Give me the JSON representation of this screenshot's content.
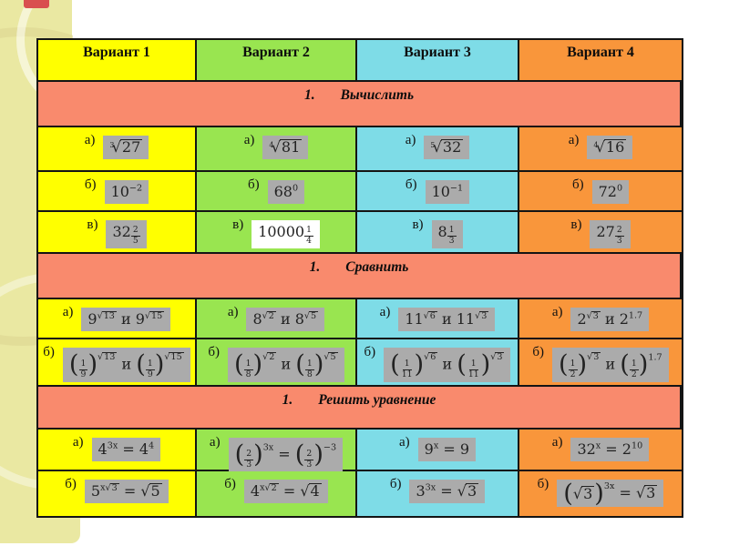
{
  "colors": {
    "col1": "#FFFF00",
    "col2": "#99E550",
    "col3": "#7EDCE7",
    "col4": "#F9963B",
    "section": "#F98A6D",
    "formulaBg": "#ABABAB",
    "formulaWhite": "#FFFFFF",
    "border": "#141414",
    "stripe": "#EAE8A2",
    "ribbon": "#D94F4F"
  },
  "table": {
    "headers": [
      {
        "label": "Вариант 1"
      },
      {
        "label": "Вариант 2"
      },
      {
        "label": "Вариант 3"
      },
      {
        "label": "Вариант 4"
      }
    ],
    "sections": [
      {
        "num": "1.",
        "title": "Вычислить",
        "rows": [
          {
            "label": "а)",
            "cells": [
              {
                "f": [
                  {
                    "t": "nroot",
                    "n": "3",
                    "c": [
                      "27"
                    ]
                  }
                ]
              },
              {
                "f": [
                  {
                    "t": "nroot",
                    "n": "4",
                    "c": [
                      "81"
                    ]
                  }
                ]
              },
              {
                "f": [
                  {
                    "t": "nroot",
                    "n": "5",
                    "c": [
                      "32"
                    ]
                  }
                ]
              },
              {
                "f": [
                  {
                    "t": "nroot",
                    "n": "4",
                    "c": [
                      "16"
                    ]
                  }
                ]
              }
            ]
          },
          {
            "label": "б)",
            "cells": [
              {
                "f": [
                  "10",
                  {
                    "t": "sup",
                    "c": [
                      "−2"
                    ]
                  }
                ]
              },
              {
                "f": [
                  "68",
                  {
                    "t": "sup",
                    "c": [
                      "0"
                    ]
                  }
                ]
              },
              {
                "f": [
                  "10",
                  {
                    "t": "sup",
                    "c": [
                      "−1"
                    ]
                  }
                ]
              },
              {
                "f": [
                  "72",
                  {
                    "t": "sup",
                    "c": [
                      "0"
                    ]
                  }
                ]
              }
            ]
          },
          {
            "label": "в)",
            "cells": [
              {
                "f": [
                  "32",
                  {
                    "t": "sup",
                    "c": [
                      {
                        "t": "frac",
                        "num": [
                          "2"
                        ],
                        "den": [
                          "5"
                        ]
                      }
                    ]
                  }
                ]
              },
              {
                "f": [
                  "10000",
                  {
                    "t": "sup",
                    "c": [
                      {
                        "t": "frac",
                        "num": [
                          "1"
                        ],
                        "den": [
                          "4"
                        ]
                      }
                    ]
                  }
                ],
                "white": true
              },
              {
                "f": [
                  "8",
                  {
                    "t": "sup",
                    "c": [
                      {
                        "t": "frac",
                        "num": [
                          "1"
                        ],
                        "den": [
                          "3"
                        ]
                      }
                    ]
                  }
                ]
              },
              {
                "f": [
                  "27",
                  {
                    "t": "sup",
                    "c": [
                      {
                        "t": "frac",
                        "num": [
                          "2"
                        ],
                        "den": [
                          "3"
                        ]
                      }
                    ]
                  }
                ]
              }
            ]
          }
        ]
      },
      {
        "num": "1.",
        "title": "Сравнить",
        "rows": [
          {
            "label": "а)",
            "cells": [
              {
                "f": [
                  "9",
                  {
                    "t": "sup",
                    "c": [
                      {
                        "t": "sqrt",
                        "c": [
                          "13"
                        ]
                      }
                    ]
                  },
                  " и 9",
                  {
                    "t": "sup",
                    "c": [
                      {
                        "t": "sqrt",
                        "c": [
                          "15"
                        ]
                      }
                    ]
                  }
                ]
              },
              {
                "f": [
                  "8",
                  {
                    "t": "sup",
                    "c": [
                      {
                        "t": "sqrt",
                        "c": [
                          "2"
                        ]
                      }
                    ]
                  },
                  " и 8",
                  {
                    "t": "sup",
                    "c": [
                      {
                        "t": "sqrt",
                        "c": [
                          "5"
                        ]
                      }
                    ]
                  }
                ]
              },
              {
                "f": [
                  "11",
                  {
                    "t": "sup",
                    "c": [
                      {
                        "t": "sqrt",
                        "c": [
                          "6"
                        ]
                      }
                    ]
                  },
                  " и 11",
                  {
                    "t": "sup",
                    "c": [
                      {
                        "t": "sqrt",
                        "c": [
                          "3"
                        ]
                      }
                    ]
                  }
                ]
              },
              {
                "f": [
                  "2",
                  {
                    "t": "sup",
                    "c": [
                      {
                        "t": "sqrt",
                        "c": [
                          "3"
                        ]
                      }
                    ]
                  },
                  " и 2",
                  {
                    "t": "sup",
                    "c": [
                      "1.7"
                    ]
                  }
                ]
              }
            ]
          },
          {
            "label": "б)",
            "cells": [
              {
                "f": [
                  {
                    "t": "par",
                    "c": [
                      {
                        "t": "frac",
                        "num": [
                          "1"
                        ],
                        "den": [
                          "9"
                        ]
                      }
                    ]
                  },
                  {
                    "t": "sup",
                    "c": [
                      {
                        "t": "sqrt",
                        "c": [
                          "13"
                        ]
                      }
                    ]
                  },
                  " и ",
                  {
                    "t": "par",
                    "c": [
                      {
                        "t": "frac",
                        "num": [
                          "1"
                        ],
                        "den": [
                          "9"
                        ]
                      }
                    ]
                  },
                  {
                    "t": "sup",
                    "c": [
                      {
                        "t": "sqrt",
                        "c": [
                          "15"
                        ]
                      }
                    ]
                  }
                ]
              },
              {
                "f": [
                  {
                    "t": "par",
                    "c": [
                      {
                        "t": "frac",
                        "num": [
                          "1"
                        ],
                        "den": [
                          "8"
                        ]
                      }
                    ]
                  },
                  {
                    "t": "sup",
                    "c": [
                      {
                        "t": "sqrt",
                        "c": [
                          "2"
                        ]
                      }
                    ]
                  },
                  " и ",
                  {
                    "t": "par",
                    "c": [
                      {
                        "t": "frac",
                        "num": [
                          "1"
                        ],
                        "den": [
                          "8"
                        ]
                      }
                    ]
                  },
                  {
                    "t": "sup",
                    "c": [
                      {
                        "t": "sqrt",
                        "c": [
                          "5"
                        ]
                      }
                    ]
                  }
                ]
              },
              {
                "f": [
                  {
                    "t": "par",
                    "c": [
                      {
                        "t": "frac",
                        "num": [
                          "1"
                        ],
                        "den": [
                          "11"
                        ]
                      }
                    ]
                  },
                  {
                    "t": "sup",
                    "c": [
                      {
                        "t": "sqrt",
                        "c": [
                          "6"
                        ]
                      }
                    ]
                  },
                  " и ",
                  {
                    "t": "par",
                    "c": [
                      {
                        "t": "frac",
                        "num": [
                          "1"
                        ],
                        "den": [
                          "11"
                        ]
                      }
                    ]
                  },
                  {
                    "t": "sup",
                    "c": [
                      {
                        "t": "sqrt",
                        "c": [
                          "3"
                        ]
                      }
                    ]
                  }
                ]
              },
              {
                "f": [
                  {
                    "t": "par",
                    "c": [
                      {
                        "t": "frac",
                        "num": [
                          "1"
                        ],
                        "den": [
                          "2"
                        ]
                      }
                    ]
                  },
                  {
                    "t": "sup",
                    "c": [
                      {
                        "t": "sqrt",
                        "c": [
                          "3"
                        ]
                      }
                    ]
                  },
                  " и ",
                  {
                    "t": "par",
                    "c": [
                      {
                        "t": "frac",
                        "num": [
                          "1"
                        ],
                        "den": [
                          "2"
                        ]
                      }
                    ]
                  },
                  {
                    "t": "sup",
                    "c": [
                      "1.7"
                    ]
                  }
                ]
              }
            ]
          }
        ]
      },
      {
        "num": "1.",
        "title": "Решить уравнение",
        "rows": [
          {
            "label": "а)",
            "cells": [
              {
                "f": [
                  "4",
                  {
                    "t": "sup",
                    "c": [
                      "3x"
                    ]
                  },
                  " = 4",
                  {
                    "t": "sup",
                    "c": [
                      "4"
                    ]
                  }
                ]
              },
              {
                "f": [
                  {
                    "t": "par",
                    "c": [
                      {
                        "t": "frac",
                        "num": [
                          "2"
                        ],
                        "den": [
                          "3"
                        ]
                      }
                    ]
                  },
                  {
                    "t": "sup",
                    "c": [
                      "3x"
                    ]
                  },
                  " = ",
                  {
                    "t": "par",
                    "c": [
                      {
                        "t": "frac",
                        "num": [
                          "2"
                        ],
                        "den": [
                          "3"
                        ]
                      }
                    ]
                  },
                  {
                    "t": "sup",
                    "c": [
                      "−3"
                    ]
                  }
                ]
              },
              {
                "f": [
                  "9",
                  {
                    "t": "sup",
                    "c": [
                      "x"
                    ]
                  },
                  " = 9"
                ]
              },
              {
                "f": [
                  "32",
                  {
                    "t": "sup",
                    "c": [
                      "x"
                    ]
                  },
                  " = 2",
                  {
                    "t": "sup",
                    "c": [
                      "10"
                    ]
                  }
                ]
              }
            ]
          },
          {
            "label": "б)",
            "cells": [
              {
                "f": [
                  "5",
                  {
                    "t": "sup",
                    "c": [
                      "x",
                      {
                        "t": "sqrt",
                        "c": [
                          "3"
                        ]
                      }
                    ]
                  },
                  " = ",
                  {
                    "t": "sqrt",
                    "c": [
                      "5"
                    ]
                  }
                ]
              },
              {
                "f": [
                  "4",
                  {
                    "t": "sup",
                    "c": [
                      "x",
                      {
                        "t": "sqrt",
                        "c": [
                          "2"
                        ]
                      }
                    ]
                  },
                  " = ",
                  {
                    "t": "sqrt",
                    "c": [
                      "4"
                    ]
                  }
                ]
              },
              {
                "f": [
                  "3",
                  {
                    "t": "sup",
                    "c": [
                      "3x"
                    ]
                  },
                  " = ",
                  {
                    "t": "sqrt",
                    "c": [
                      "3"
                    ]
                  }
                ]
              },
              {
                "f": [
                  {
                    "t": "par",
                    "c": [
                      {
                        "t": "sqrt",
                        "c": [
                          "3"
                        ]
                      }
                    ]
                  },
                  {
                    "t": "sup",
                    "c": [
                      "3x"
                    ]
                  },
                  " = ",
                  {
                    "t": "sqrt",
                    "c": [
                      "3"
                    ]
                  }
                ]
              }
            ]
          }
        ]
      }
    ]
  }
}
